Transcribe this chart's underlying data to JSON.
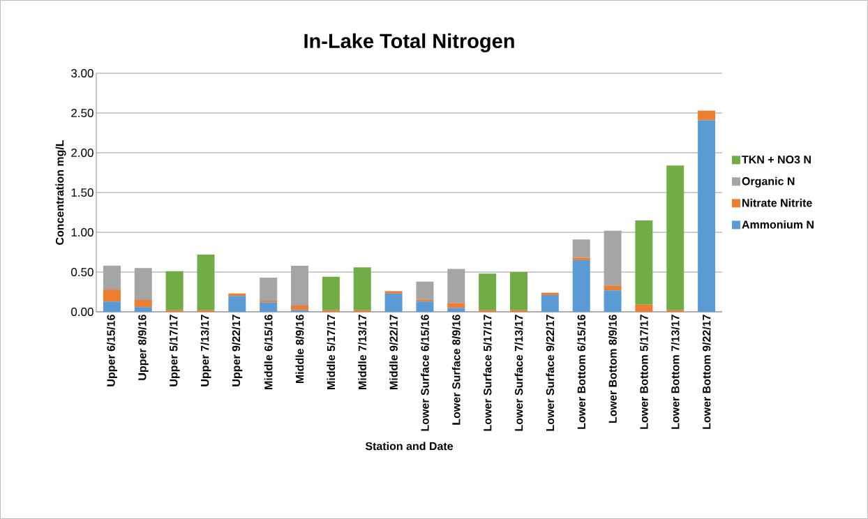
{
  "chart_data": {
    "type": "bar",
    "stacked": true,
    "title": "In-Lake Total Nitrogen",
    "xlabel": "Station and Date",
    "ylabel": "Concentration mg/L",
    "categories": [
      "Upper 6/15/16",
      "Upper 8/9/16",
      "Upper 5/17/17",
      "Upper 7/13/17",
      "Upper 9/22/17",
      "Middle 6/15/16",
      "Middle 8/9/16",
      "Middle 5/17/17",
      "Middle 7/13/17",
      "Middle 9/22/17",
      "Lower Surface 6/15/16",
      "Lower Surface 8/9/16",
      "Lower Surface 5/17/17",
      "Lower Surface 7/13/17",
      "Lower Surface 9/22/17",
      "Lower Bottom 6/15/16",
      "Lower Bottom 8/9/16",
      "Lower Bottom 5/17/17",
      "Lower Bottom 7/13/17",
      "Lower Bottom 9/22/17"
    ],
    "series": [
      {
        "name": "Ammonium N",
        "color": "#5b9bd5",
        "values": [
          0.13,
          0.06,
          null,
          null,
          0.2,
          0.12,
          0.02,
          null,
          null,
          0.23,
          0.13,
          0.05,
          null,
          null,
          0.21,
          0.65,
          0.27,
          null,
          null,
          2.41
        ]
      },
      {
        "name": "Nitrate Nitrite",
        "color": "#ed7d31",
        "values": [
          0.15,
          0.09,
          0.02,
          0.02,
          0.03,
          0.02,
          0.06,
          0.02,
          0.02,
          0.03,
          0.02,
          0.06,
          0.02,
          0.02,
          0.03,
          0.03,
          0.06,
          0.09,
          0.02,
          0.12
        ]
      },
      {
        "name": "Organic N",
        "color": "#a5a5a5",
        "values": [
          0.3,
          0.4,
          null,
          null,
          null,
          0.29,
          0.5,
          null,
          null,
          null,
          0.23,
          0.43,
          null,
          null,
          null,
          0.23,
          0.69,
          null,
          null,
          null
        ]
      },
      {
        "name": "TKN + NO3 N",
        "color": "#70ad47",
        "values": [
          null,
          null,
          0.49,
          0.7,
          null,
          null,
          null,
          0.42,
          0.54,
          null,
          null,
          null,
          0.46,
          0.48,
          null,
          null,
          null,
          1.06,
          1.82,
          null
        ]
      }
    ],
    "ylim": [
      0,
      3
    ],
    "yticks": [
      {
        "value": 0,
        "label": "0.00"
      },
      {
        "value": 0.5,
        "label": "0.50"
      },
      {
        "value": 1,
        "label": "1.00"
      },
      {
        "value": 1.5,
        "label": "1.50"
      },
      {
        "value": 2,
        "label": "2.00"
      },
      {
        "value": 2.5,
        "label": "2.50"
      },
      {
        "value": 3,
        "label": "3.00"
      }
    ],
    "grid": "y",
    "legend": "right"
  }
}
